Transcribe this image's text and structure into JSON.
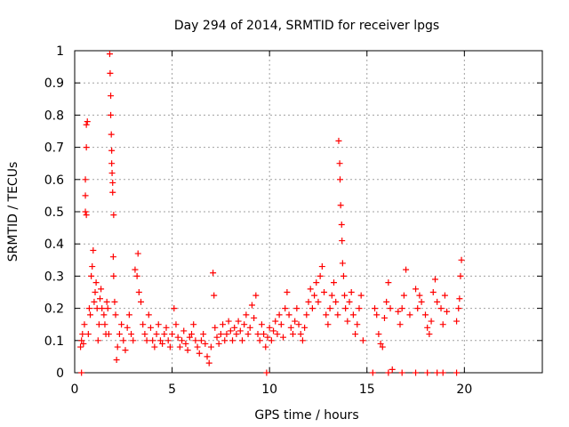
{
  "chart_data": {
    "type": "scatter",
    "title": "Day 294 of 2014, SRMTID for receiver lpgs",
    "xlabel": "GPS time / hours",
    "ylabel": "SRMTID / TECUs",
    "xlim": [
      0,
      24
    ],
    "ylim": [
      0,
      1
    ],
    "xticks": [
      0,
      5,
      10,
      15,
      20
    ],
    "xtick_labels": [
      "0",
      "5",
      "10",
      "15",
      "20"
    ],
    "yticks": [
      0,
      0.1,
      0.2,
      0.3,
      0.4,
      0.5,
      0.6,
      0.7,
      0.8,
      0.9,
      1
    ],
    "ytick_labels": [
      "0",
      "0.1",
      "0.2",
      "0.3",
      "0.4",
      "0.5",
      "0.6",
      "0.7",
      "0.8",
      "0.9",
      "1"
    ],
    "grid": true,
    "marker": "plus",
    "color": "#ff0000",
    "series": [
      {
        "name": "SRMTID",
        "points": [
          [
            0.3,
            0.08
          ],
          [
            0.35,
            0.1
          ],
          [
            0.4,
            0.12
          ],
          [
            0.45,
            0.09
          ],
          [
            0.5,
            0.15
          ],
          [
            0.55,
            0.5
          ],
          [
            0.55,
            0.55
          ],
          [
            0.55,
            0.6
          ],
          [
            0.6,
            0.7
          ],
          [
            0.6,
            0.77
          ],
          [
            0.65,
            0.78
          ],
          [
            0.6,
            0.49
          ],
          [
            0.7,
            0.12
          ],
          [
            0.75,
            0.2
          ],
          [
            0.8,
            0.18
          ],
          [
            0.85,
            0.3
          ],
          [
            0.9,
            0.33
          ],
          [
            0.95,
            0.38
          ],
          [
            1.0,
            0.22
          ],
          [
            1.05,
            0.25
          ],
          [
            1.1,
            0.28
          ],
          [
            1.15,
            0.2
          ],
          [
            1.2,
            0.1
          ],
          [
            1.25,
            0.15
          ],
          [
            1.3,
            0.23
          ],
          [
            1.35,
            0.26
          ],
          [
            1.4,
            0.2
          ],
          [
            1.5,
            0.18
          ],
          [
            1.55,
            0.15
          ],
          [
            1.6,
            0.12
          ],
          [
            1.65,
            0.22
          ],
          [
            1.7,
            0.2
          ],
          [
            1.75,
            0.12
          ],
          [
            1.8,
            0.99
          ],
          [
            1.82,
            0.93
          ],
          [
            1.85,
            0.86
          ],
          [
            1.85,
            0.8
          ],
          [
            1.88,
            0.74
          ],
          [
            1.9,
            0.69
          ],
          [
            1.9,
            0.65
          ],
          [
            1.92,
            0.62
          ],
          [
            1.95,
            0.59
          ],
          [
            1.95,
            0.56
          ],
          [
            2.0,
            0.49
          ],
          [
            1.98,
            0.36
          ],
          [
            2.0,
            0.3
          ],
          [
            2.05,
            0.22
          ],
          [
            2.1,
            0.18
          ],
          [
            2.15,
            0.04
          ],
          [
            2.2,
            0.08
          ],
          [
            2.3,
            0.12
          ],
          [
            2.4,
            0.15
          ],
          [
            2.5,
            0.1
          ],
          [
            2.6,
            0.07
          ],
          [
            2.7,
            0.14
          ],
          [
            2.8,
            0.18
          ],
          [
            2.9,
            0.12
          ],
          [
            3.0,
            0.1
          ],
          [
            3.1,
            0.32
          ],
          [
            3.2,
            0.3
          ],
          [
            3.25,
            0.37
          ],
          [
            3.3,
            0.25
          ],
          [
            3.4,
            0.22
          ],
          [
            3.5,
            0.15
          ],
          [
            3.6,
            0.12
          ],
          [
            3.7,
            0.1
          ],
          [
            3.8,
            0.18
          ],
          [
            3.9,
            0.14
          ],
          [
            4.0,
            0.1
          ],
          [
            4.1,
            0.08
          ],
          [
            4.2,
            0.12
          ],
          [
            4.3,
            0.15
          ],
          [
            4.4,
            0.1
          ],
          [
            4.5,
            0.09
          ],
          [
            4.6,
            0.12
          ],
          [
            4.7,
            0.14
          ],
          [
            4.8,
            0.1
          ],
          [
            4.9,
            0.08
          ],
          [
            5.0,
            0.12
          ],
          [
            5.1,
            0.2
          ],
          [
            5.2,
            0.15
          ],
          [
            5.3,
            0.11
          ],
          [
            5.4,
            0.08
          ],
          [
            5.5,
            0.1
          ],
          [
            5.6,
            0.13
          ],
          [
            5.7,
            0.09
          ],
          [
            5.8,
            0.07
          ],
          [
            5.9,
            0.11
          ],
          [
            6.0,
            0.12
          ],
          [
            6.1,
            0.15
          ],
          [
            6.2,
            0.1
          ],
          [
            6.3,
            0.08
          ],
          [
            6.4,
            0.06
          ],
          [
            6.5,
            0.1
          ],
          [
            6.6,
            0.12
          ],
          [
            6.7,
            0.09
          ],
          [
            6.8,
            0.05
          ],
          [
            6.9,
            0.03
          ],
          [
            7.0,
            0.08
          ],
          [
            7.1,
            0.31
          ],
          [
            7.15,
            0.24
          ],
          [
            7.2,
            0.14
          ],
          [
            7.3,
            0.11
          ],
          [
            7.4,
            0.09
          ],
          [
            7.5,
            0.12
          ],
          [
            7.6,
            0.15
          ],
          [
            7.7,
            0.1
          ],
          [
            7.8,
            0.12
          ],
          [
            7.9,
            0.16
          ],
          [
            8.0,
            0.13
          ],
          [
            8.1,
            0.1
          ],
          [
            8.2,
            0.14
          ],
          [
            8.3,
            0.12
          ],
          [
            8.4,
            0.16
          ],
          [
            8.5,
            0.13
          ],
          [
            8.6,
            0.1
          ],
          [
            8.7,
            0.15
          ],
          [
            8.8,
            0.18
          ],
          [
            8.9,
            0.12
          ],
          [
            9.0,
            0.14
          ],
          [
            9.1,
            0.21
          ],
          [
            9.2,
            0.17
          ],
          [
            9.3,
            0.24
          ],
          [
            9.4,
            0.12
          ],
          [
            9.5,
            0.1
          ],
          [
            9.6,
            0.15
          ],
          [
            9.7,
            0.12
          ],
          [
            9.8,
            0.08
          ],
          [
            9.9,
            0.11
          ],
          [
            10.0,
            0.14
          ],
          [
            10.1,
            0.1
          ],
          [
            10.2,
            0.13
          ],
          [
            10.3,
            0.16
          ],
          [
            10.4,
            0.12
          ],
          [
            10.5,
            0.18
          ],
          [
            10.6,
            0.15
          ],
          [
            10.7,
            0.11
          ],
          [
            10.8,
            0.2
          ],
          [
            10.9,
            0.25
          ],
          [
            11.0,
            0.18
          ],
          [
            11.1,
            0.14
          ],
          [
            11.2,
            0.12
          ],
          [
            11.3,
            0.16
          ],
          [
            11.4,
            0.2
          ],
          [
            11.5,
            0.15
          ],
          [
            11.6,
            0.12
          ],
          [
            11.7,
            0.1
          ],
          [
            11.8,
            0.14
          ],
          [
            11.9,
            0.18
          ],
          [
            12.0,
            0.22
          ],
          [
            12.1,
            0.26
          ],
          [
            12.2,
            0.2
          ],
          [
            12.3,
            0.24
          ],
          [
            12.4,
            0.28
          ],
          [
            12.5,
            0.22
          ],
          [
            12.6,
            0.3
          ],
          [
            12.7,
            0.33
          ],
          [
            12.8,
            0.25
          ],
          [
            12.9,
            0.18
          ],
          [
            13.0,
            0.15
          ],
          [
            13.1,
            0.2
          ],
          [
            13.2,
            0.24
          ],
          [
            13.3,
            0.28
          ],
          [
            13.4,
            0.22
          ],
          [
            13.5,
            0.18
          ],
          [
            13.55,
            0.72
          ],
          [
            13.6,
            0.65
          ],
          [
            13.62,
            0.6
          ],
          [
            13.65,
            0.52
          ],
          [
            13.7,
            0.46
          ],
          [
            13.72,
            0.41
          ],
          [
            13.75,
            0.34
          ],
          [
            13.8,
            0.3
          ],
          [
            13.85,
            0.24
          ],
          [
            13.9,
            0.2
          ],
          [
            14.0,
            0.16
          ],
          [
            14.1,
            0.22
          ],
          [
            14.2,
            0.25
          ],
          [
            14.3,
            0.18
          ],
          [
            14.4,
            0.12
          ],
          [
            14.5,
            0.15
          ],
          [
            14.6,
            0.2
          ],
          [
            14.7,
            0.24
          ],
          [
            14.8,
            0.1
          ],
          [
            15.4,
            0.2
          ],
          [
            15.5,
            0.18
          ],
          [
            15.6,
            0.12
          ],
          [
            15.7,
            0.09
          ],
          [
            15.8,
            0.08
          ],
          [
            15.9,
            0.17
          ],
          [
            16.0,
            0.22
          ],
          [
            16.1,
            0.28
          ],
          [
            16.2,
            0.2
          ],
          [
            16.3,
            0.01
          ],
          [
            16.6,
            0.19
          ],
          [
            16.7,
            0.15
          ],
          [
            16.8,
            0.2
          ],
          [
            16.9,
            0.24
          ],
          [
            17.0,
            0.32
          ],
          [
            17.2,
            0.18
          ],
          [
            17.5,
            0.26
          ],
          [
            17.6,
            0.2
          ],
          [
            17.7,
            0.24
          ],
          [
            17.8,
            0.22
          ],
          [
            18.0,
            0.18
          ],
          [
            18.1,
            0.14
          ],
          [
            18.2,
            0.12
          ],
          [
            18.3,
            0.16
          ],
          [
            18.4,
            0.25
          ],
          [
            18.5,
            0.29
          ],
          [
            18.6,
            0.22
          ],
          [
            18.8,
            0.2
          ],
          [
            18.9,
            0.15
          ],
          [
            19.0,
            0.24
          ],
          [
            19.1,
            0.19
          ],
          [
            19.6,
            0.16
          ],
          [
            19.7,
            0.2
          ],
          [
            19.75,
            0.23
          ],
          [
            19.8,
            0.3
          ],
          [
            19.85,
            0.35
          ],
          [
            0.35,
            0.0
          ],
          [
            9.85,
            0.0
          ],
          [
            15.3,
            0.0
          ],
          [
            16.1,
            0.0
          ],
          [
            16.8,
            0.0
          ],
          [
            17.5,
            0.0
          ],
          [
            18.1,
            0.0
          ],
          [
            18.6,
            0.0
          ],
          [
            18.9,
            0.0
          ],
          [
            19.6,
            0.0
          ]
        ]
      }
    ]
  }
}
